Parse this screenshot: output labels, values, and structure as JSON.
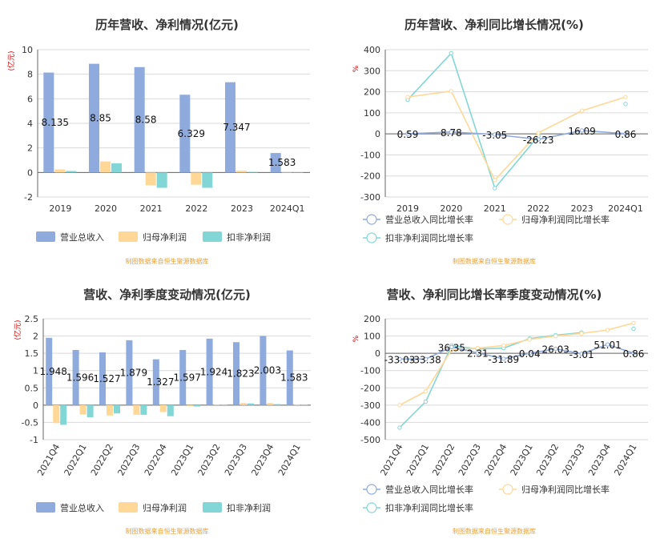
{
  "source_note": "制图数据来自恒生聚源数据库",
  "colors": {
    "revenue": "#8faadc",
    "netprofit": "#ffd898",
    "deducted": "#83d6d6",
    "axis": "#666666",
    "grid": "#d9d9d9",
    "ylabel": "#cc0000"
  },
  "legend": {
    "bar": [
      "营业总收入",
      "归母净利润",
      "扣非净利润"
    ],
    "line": [
      "营业总收入同比增长率",
      "归母净利润同比增长率",
      "扣非净利润同比增长率"
    ]
  },
  "chart_data": [
    {
      "type": "bar",
      "title": "历年营收、净利情况(亿元)",
      "ylabel": "(亿元)",
      "ylim": [
        -2,
        10
      ],
      "yticks": [
        -2,
        0,
        2,
        4,
        6,
        8,
        10
      ],
      "categories": [
        "2019",
        "2020",
        "2021",
        "2022",
        "2023",
        "2024Q1"
      ],
      "series": [
        {
          "name": "营业总收入",
          "values": [
            8.135,
            8.85,
            8.58,
            6.329,
            7.347,
            1.583
          ]
        },
        {
          "name": "归母净利润",
          "values": [
            0.25,
            0.9,
            -1.05,
            -1.0,
            0.15,
            0.01
          ]
        },
        {
          "name": "扣非净利润",
          "values": [
            0.12,
            0.75,
            -1.25,
            -1.25,
            0.05,
            0.01
          ]
        }
      ],
      "labels": [
        "8.135",
        "8.85",
        "8.58",
        "6.329",
        "7.347",
        "1.583"
      ],
      "legend": "bottom"
    },
    {
      "type": "line",
      "title": "历年营收、净利同比增长情况(%)",
      "ylabel": "%",
      "ylim": [
        -300,
        400
      ],
      "yticks": [
        -300,
        -200,
        -100,
        0,
        100,
        200,
        300,
        400
      ],
      "categories": [
        "2019",
        "2020",
        "2021",
        "2022",
        "2023",
        "2024Q1"
      ],
      "series": [
        {
          "name": "营业总收入同比增长率",
          "values": [
            0.59,
            8.78,
            -3.05,
            -26.23,
            16.09,
            0.86
          ]
        },
        {
          "name": "归母净利润同比增长率",
          "values": [
            175,
            203,
            -220,
            5,
            110,
            175
          ]
        },
        {
          "name": "扣非净利润同比增长率",
          "values": [
            162,
            383,
            -258,
            -10,
            null,
            142
          ]
        }
      ],
      "labels": [
        "0.59",
        "8.78",
        "-3.05",
        "-26.23",
        "16.09",
        "0.86"
      ],
      "legend": "bottom"
    },
    {
      "type": "bar",
      "title": "营收、净利季度变动情况(亿元)",
      "ylabel": "(亿元)",
      "ylim": [
        -1,
        2.5
      ],
      "yticks": [
        -1,
        -0.5,
        0,
        0.5,
        1,
        1.5,
        2,
        2.5
      ],
      "categories": [
        "2021Q4",
        "2022Q1",
        "2022Q2",
        "2022Q3",
        "2022Q4",
        "2023Q1",
        "2023Q2",
        "2023Q3",
        "2023Q4",
        "2024Q1"
      ],
      "series": [
        {
          "name": "营业总收入",
          "values": [
            1.948,
            1.596,
            1.527,
            1.879,
            1.327,
            1.597,
            1.924,
            1.823,
            2.003,
            1.583
          ]
        },
        {
          "name": "归母净利润",
          "values": [
            -0.52,
            -0.27,
            -0.3,
            -0.28,
            -0.2,
            -0.03,
            0.02,
            0.06,
            0.06,
            0.01
          ]
        },
        {
          "name": "扣非净利润",
          "values": [
            -0.57,
            -0.35,
            -0.24,
            -0.28,
            -0.32,
            -0.04,
            0.01,
            0.05,
            0.03,
            0.01
          ]
        }
      ],
      "labels": [
        "1.948",
        "1.596",
        "1.527",
        "1.879",
        "1.327",
        "1.597",
        "1.924",
        "1.823",
        "2.003",
        "1.583"
      ],
      "legend": "bottom"
    },
    {
      "type": "line",
      "title": "营收、净利同比增长率季度变动情况(%)",
      "ylabel": "%",
      "ylim": [
        -500,
        200
      ],
      "yticks": [
        -500,
        -400,
        -300,
        -200,
        -100,
        0,
        100,
        200
      ],
      "categories": [
        "2021Q4",
        "2022Q1",
        "2022Q2",
        "2022Q3",
        "2022Q4",
        "2023Q1",
        "2023Q2",
        "2023Q3",
        "2023Q4",
        "2024Q1"
      ],
      "series": [
        {
          "name": "营业总收入同比增长率",
          "values": [
            -33.03,
            -33.38,
            36.35,
            2.31,
            -31.89,
            0.04,
            26.03,
            -3.01,
            51.01,
            0.86
          ]
        },
        {
          "name": "归母净利润同比增长率",
          "values": [
            -300,
            -220,
            20,
            30,
            45,
            80,
            100,
            115,
            135,
            175
          ]
        },
        {
          "name": "扣非净利润同比增长率",
          "values": [
            -430,
            -280,
            45,
            25,
            30,
            85,
            105,
            120,
            null,
            142
          ]
        }
      ],
      "labels": [
        "-33.03",
        "-33.38",
        "36.35",
        "2.31",
        "-31.89",
        "0.04",
        "26.03",
        "-3.01",
        "51.01",
        "0.86"
      ],
      "legend": "bottom"
    }
  ]
}
